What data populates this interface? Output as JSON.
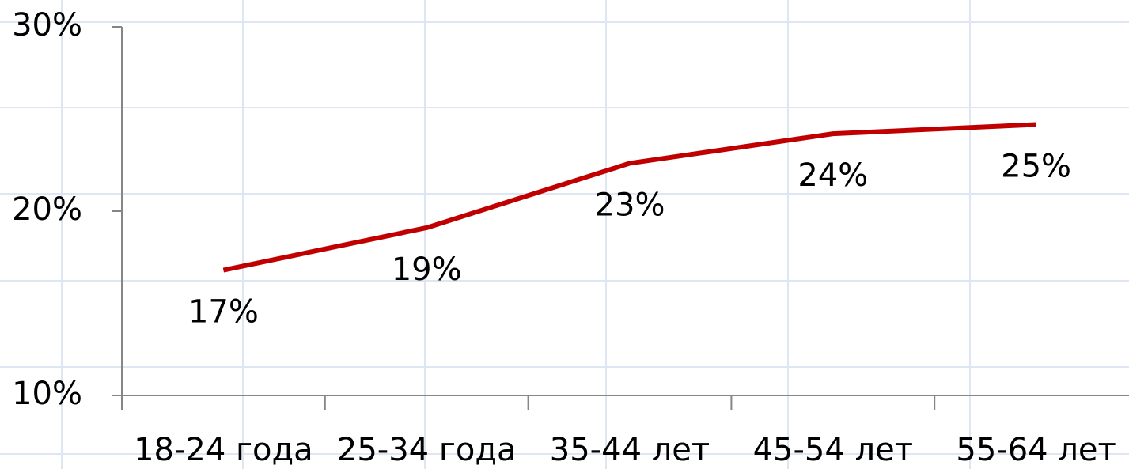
{
  "chart_data": {
    "type": "line",
    "categories": [
      "18-24 года",
      "25-34 года",
      "35-44 лет",
      "45-54 лет",
      "55-64 лет"
    ],
    "values": [
      16.8,
      19.1,
      22.6,
      24.2,
      24.7
    ],
    "value_labels": [
      "17%",
      "19%",
      "23%",
      "24%",
      "25%"
    ],
    "color": "#c00000",
    "ylim": [
      10,
      30
    ],
    "yticks": [
      {
        "value": 10,
        "label": "10%"
      },
      {
        "value": 20,
        "label": "20%"
      },
      {
        "value": 30,
        "label": "30%"
      }
    ]
  }
}
